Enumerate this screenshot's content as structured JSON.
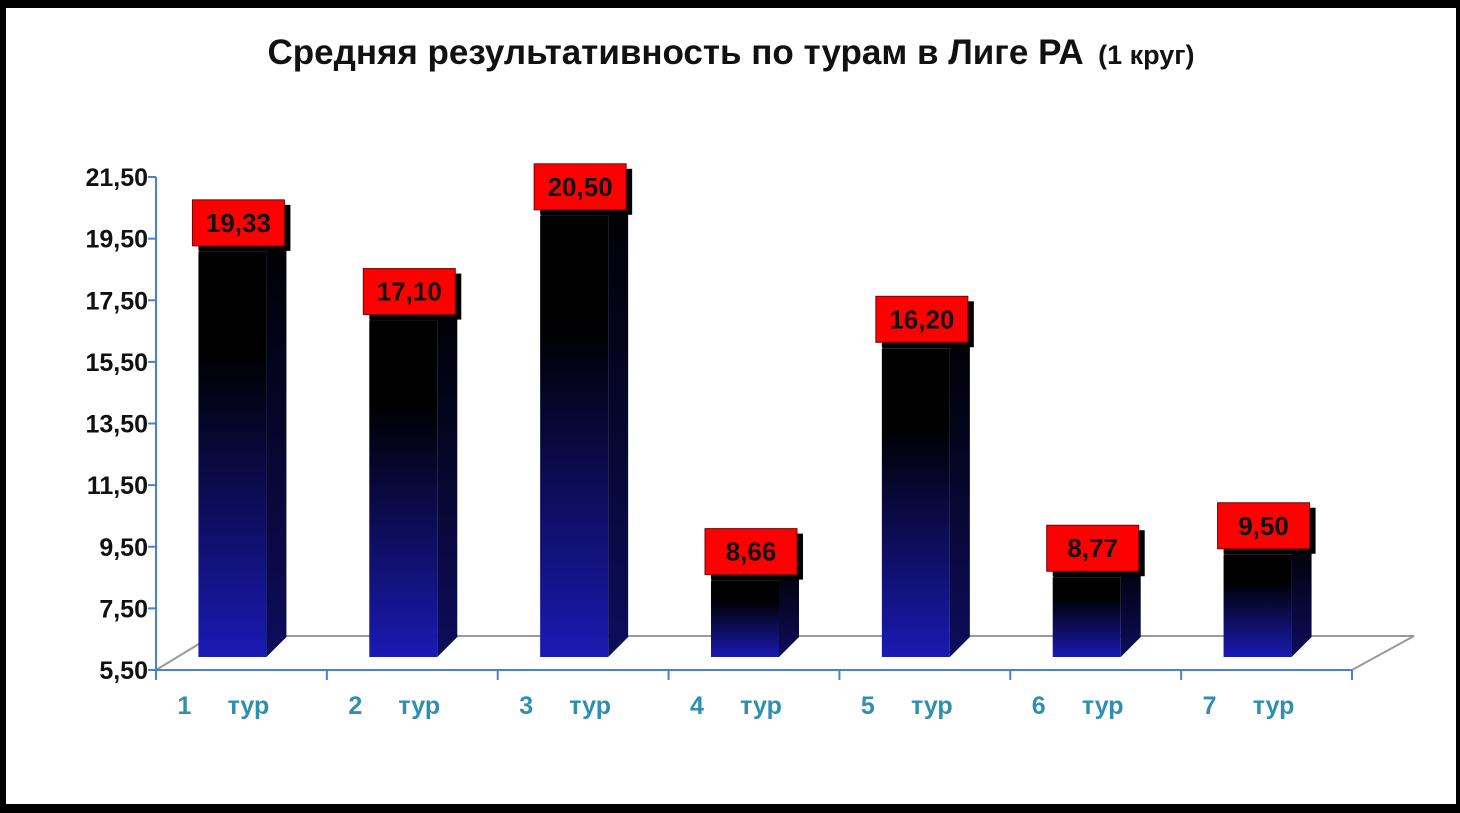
{
  "colors": {
    "background": "#ffffff",
    "frame": "#000000",
    "bar_top": "#000000",
    "bar_bottom": "#1a1ab4",
    "label_box": "#ff0000",
    "label_text": "#111111",
    "axis": "#4a7fd1",
    "category_text": "#2e8fb0"
  },
  "chart_data": {
    "type": "bar",
    "style": "3d-column",
    "title": "Средняя результативность по турам в Лиге РА",
    "subtitle": "(1 круг)",
    "categories": [
      "1 тур",
      "2 тур",
      "3 тур",
      "4 тур",
      "5 тур",
      "6 тур",
      "7 тур"
    ],
    "category_numbers": [
      "1",
      "2",
      "3",
      "4",
      "5",
      "6",
      "7"
    ],
    "category_word": "тур",
    "values": [
      19.33,
      17.1,
      20.5,
      8.66,
      16.2,
      8.77,
      9.5
    ],
    "data_labels": [
      "19,33",
      "17,10",
      "20,50",
      "8,66",
      "16,20",
      "8,77",
      "9,50"
    ],
    "y_ticks": [
      "5,50",
      "7,50",
      "9,50",
      "11,50",
      "13,50",
      "15,50",
      "17,50",
      "19,50",
      "21,50"
    ],
    "y_tick_values": [
      5.5,
      7.5,
      9.5,
      11.5,
      13.5,
      15.5,
      17.5,
      19.5,
      21.5
    ],
    "ylim": [
      5.5,
      21.5
    ],
    "xlabel": "",
    "ylabel": "",
    "grid": false,
    "legend": "none"
  }
}
